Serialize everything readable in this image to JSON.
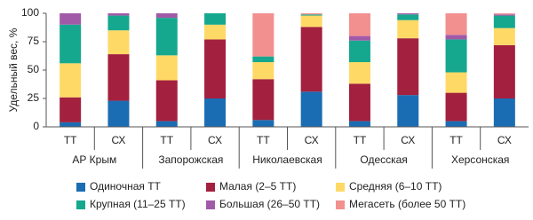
{
  "chart_data": {
    "type": "stacked_bar",
    "y_label": "Удельный вес, %",
    "categories": [
      "ТТ",
      "СХ",
      "ТТ",
      "СХ",
      "ТТ",
      "СХ",
      "ТТ",
      "СХ",
      "ТТ",
      "СХ"
    ],
    "groups": [
      "АР Крым",
      "Запорожская",
      "Николаевская",
      "Одесская",
      "Херсонская"
    ],
    "series": [
      {
        "name": "Одиночная ТТ",
        "color": "#1a6db3",
        "values": [
          4,
          23,
          5,
          25,
          6,
          31,
          5,
          28,
          5,
          25
        ]
      },
      {
        "name": "Малая (2–5 ТТ)",
        "color": "#a3203f",
        "values": [
          22,
          41,
          36,
          52,
          36,
          57,
          33,
          50,
          25,
          47
        ]
      },
      {
        "name": "Средняя (6–10 ТТ)",
        "color": "#ffd966",
        "values": [
          30,
          21,
          22,
          13,
          15,
          10,
          19,
          16,
          18,
          15
        ]
      },
      {
        "name": "Крупная (11–25 ТТ)",
        "color": "#15a88e",
        "values": [
          34,
          13,
          33,
          10,
          5,
          1,
          19,
          5,
          29,
          11
        ]
      },
      {
        "name": "Большая (26–50 ТТ)",
        "color": "#a15aa8",
        "values": [
          10,
          2,
          4,
          0,
          0,
          0,
          4,
          1,
          4,
          1
        ]
      },
      {
        "name": "Мегасеть (более 50 ТТ)",
        "color": "#f29090",
        "values": [
          0,
          0,
          0,
          0,
          38,
          1,
          20,
          0,
          19,
          1
        ]
      }
    ],
    "ylim": [
      0,
      100
    ],
    "yticks": [
      0,
      25,
      50,
      75,
      100
    ]
  }
}
